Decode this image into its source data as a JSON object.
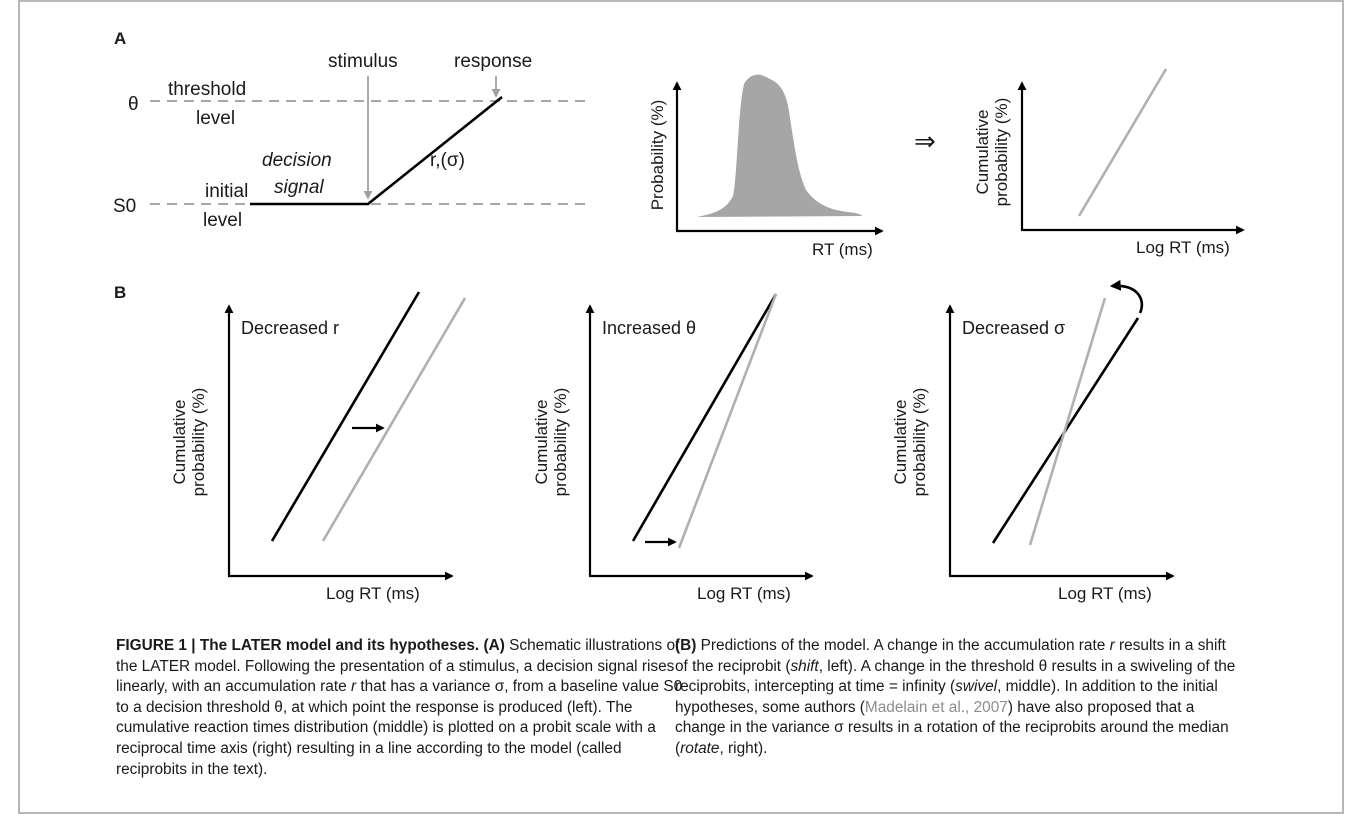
{
  "panel_A": {
    "label": "A",
    "stimulus": "stimulus",
    "response": "response",
    "theta": "θ",
    "threshold": "threshold",
    "threshold_level": "level",
    "s0": "S0",
    "initial": "initial",
    "initial_level": "level",
    "decision": "decision",
    "signal": "signal",
    "rate": "r,(σ)",
    "prob_ylabel": "Probability (%)",
    "prob_xlabel": "RT (ms)",
    "implies": "⇒",
    "cum_ylabel1": "Cumulative",
    "cum_ylabel2": "probability (%)",
    "cum_xlabel": "Log RT (ms)"
  },
  "panel_B": {
    "label": "B",
    "ylabel1": "Cumulative",
    "ylabel2": "probability (%)",
    "xlabel": "Log RT (ms)",
    "plots": [
      {
        "title": "Decreased r"
      },
      {
        "title": "Increased θ"
      },
      {
        "title": "Decreased σ"
      }
    ]
  },
  "colors": {
    "dark_line": "#000000",
    "light_line": "#b0b0b0",
    "fill": "#a6a6a6",
    "dashed": "#8a8a8a"
  },
  "caption": {
    "figure_label": "FIGURE 1 | The LATER model and its hypotheses.",
    "a_label": "(A)",
    "part1_1": " Schematic illustrations of the LATER model. Following the presentation of a stimulus, a decision signal rises linearly, with an accumulation rate ",
    "r1": "r",
    "part1_2": " that has a variance σ, from a baseline value S0 to a decision threshold θ, at which point the response is produced (left). The cumulative reaction times distribution (middle) is plotted on a probit scale with a reciprocal time axis (right) resulting in a line according to the model (called reciprobits in the text). ",
    "b_label": "(B)",
    "part2_1": " Predictions of the model. A change in the accumulation rate ",
    "r2": "r",
    "part2_2": " results in a shift of the reciprobit (",
    "shift": "shift",
    "part2_3": ", left). A change in the threshold θ results in a swiveling of the reciprobits, intercepting at time = infinity (",
    "swivel": "swivel",
    "part2_4": ", middle). In addition to the initial hypotheses, some authors (",
    "citation": "Madelain et al., 2007",
    "part2_5": ") have also proposed that a change in the variance σ results in a rotation of the reciprobits around the median (",
    "rotate": "rotate",
    "part2_6": ", right)."
  }
}
